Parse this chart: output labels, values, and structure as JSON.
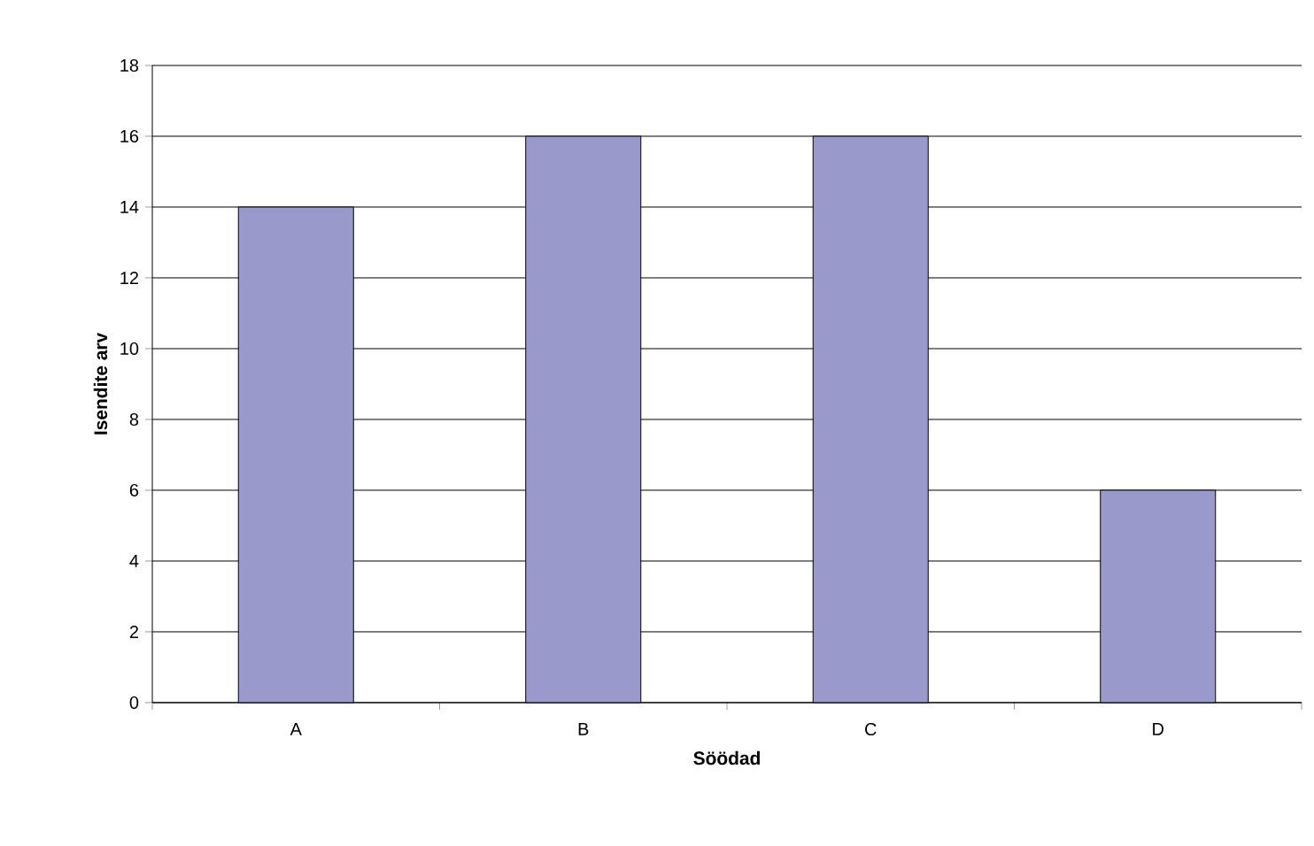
{
  "chart_data": {
    "type": "bar",
    "xlabel": "Söödad",
    "ylabel": "Isendite arv",
    "categories": [
      "A",
      "B",
      "C",
      "D"
    ],
    "values": [
      14,
      16,
      16,
      6
    ],
    "color": "#9999cc",
    "ylim": [
      0,
      18
    ],
    "yticks": [
      0,
      2,
      4,
      6,
      8,
      10,
      12,
      14,
      16,
      18
    ],
    "grid": "y"
  }
}
